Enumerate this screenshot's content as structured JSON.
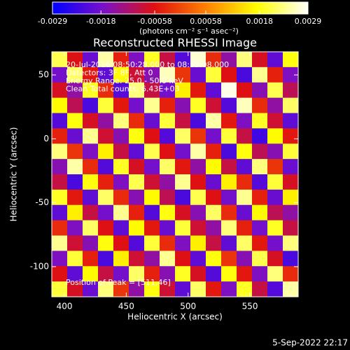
{
  "chart_data": {
    "type": "heatmap",
    "title": "Reconstructed RHESSI Image",
    "xlabel": "Heliocentric X (arcsec)",
    "ylabel": "Heliocentric Y (arcsec)",
    "colorbar_label": "(photons cm⁻² s⁻¹ asec⁻²)",
    "annotations": [
      "20-Jul-2016 08:50:28.000 to 08:55:08.000",
      "Detectors: 3F 8F, Att 0",
      "Energy Range: 25.0 - 50.0 keV",
      "Clean    Total counts: 6.43E+03"
    ],
    "peak_note": "Position of Peak = [511,46]",
    "timestamp": "5-Sep-2022 22:17",
    "xlim": [
      389.8,
      589
    ],
    "xticks": [
      400,
      450,
      500,
      550
    ],
    "ylim": [
      -123.6,
      68.1
    ],
    "yticks": [
      -100,
      -50,
      0,
      50
    ],
    "zlim": [
      -0.0029,
      0.0029
    ],
    "zticks": [
      -0.0029,
      -0.0018,
      -0.00058,
      0.00058,
      0.0018,
      0.0029
    ],
    "colormap": [
      "#0000ff",
      "#7a10c8",
      "#e01010",
      "#ff8000",
      "#ffff00",
      "#ffffff"
    ],
    "values": [
      [
        0.0021,
        -0.0006,
        -0.0019,
        0.0025,
        -0.0004,
        -0.0017,
        0.0019,
        -0.0009,
        -0.0021,
        0.0027,
        -0.0003,
        -0.0015,
        0.0023,
        -0.0007,
        -0.002,
        0.0018
      ],
      [
        -0.0018,
        0.0022,
        -0.0005,
        -0.002,
        0.0017,
        -0.0008,
        -0.0016,
        0.0026,
        -0.0002,
        -0.0019,
        0.002,
        -0.0006,
        -0.0022,
        0.0024,
        -0.0004,
        -0.0017
      ],
      [
        -0.0007,
        -0.0015,
        0.0019,
        -0.0003,
        -0.0021,
        0.0023,
        -0.0009,
        -0.0018,
        0.0016,
        -0.0005,
        -0.002,
        0.0028,
        -0.0006,
        -0.0016,
        0.0021,
        -0.001
      ],
      [
        0.0017,
        -0.001,
        -0.0022,
        0.002,
        -0.0005,
        -0.0018,
        0.0024,
        -0.0004,
        -0.0016,
        0.0019,
        -0.0008,
        -0.0021,
        0.0026,
        -0.0003,
        -0.0015,
        0.0022
      ],
      [
        -0.0021,
        0.0018,
        -0.0007,
        -0.0015,
        0.0023,
        -0.0003,
        -0.0019,
        0.002,
        -0.0009,
        -0.0022,
        0.0025,
        -0.0005,
        -0.0017,
        0.0019,
        -0.0008,
        -0.002
      ],
      [
        -0.0004,
        -0.0019,
        0.0024,
        -0.0008,
        -0.0016,
        0.0018,
        -0.0006,
        -0.0021,
        0.0022,
        -0.0002,
        -0.0018,
        0.002,
        -0.0009,
        -0.0023,
        0.0017,
        -0.0005
      ],
      [
        0.0023,
        -0.0002,
        -0.0017,
        0.0016,
        -0.0009,
        -0.002,
        0.0021,
        -0.0006,
        -0.0018,
        0.0025,
        -0.0004,
        -0.0022,
        0.0018,
        -0.001,
        -0.0016,
        0.002
      ],
      [
        -0.0016,
        0.0025,
        -0.0003,
        -0.0021,
        0.0019,
        -0.0007,
        -0.0018,
        0.0022,
        -0.0005,
        -0.0015,
        0.0017,
        -0.0009,
        -0.002,
        0.0023,
        -0.0002,
        -0.0019
      ],
      [
        -0.0009,
        -0.0022,
        0.0018,
        -0.0004,
        -0.0017,
        0.0021,
        -0.0008,
        -0.0015,
        0.0024,
        -0.0006,
        -0.0019,
        0.0016,
        -0.0003,
        -0.0021,
        0.002,
        -0.0007
      ],
      [
        0.0019,
        -0.0005,
        -0.002,
        0.0022,
        -0.0003,
        -0.0016,
        0.0017,
        -0.001,
        -0.0022,
        0.0021,
        -0.0006,
        -0.0018,
        0.0024,
        -0.0004,
        -0.0019,
        0.0016
      ],
      [
        -0.002,
        0.0016,
        -0.0009,
        -0.0018,
        0.0024,
        -0.0004,
        -0.0021,
        0.0018,
        -0.0007,
        -0.0016,
        0.0022,
        -0.0003,
        -0.0019,
        0.0017,
        -0.001,
        -0.0015
      ],
      [
        -0.0003,
        -0.0017,
        0.0022,
        -0.0006,
        -0.002,
        0.0017,
        -0.0005,
        -0.0019,
        0.002,
        -0.0008,
        -0.0015,
        0.0023,
        -0.0004,
        -0.0018,
        0.0019,
        -0.0009
      ],
      [
        0.0024,
        -0.0008,
        -0.0016,
        0.0018,
        -0.0006,
        -0.0021,
        0.002,
        -0.0003,
        -0.0017,
        0.0016,
        -0.0009,
        -0.002,
        0.0022,
        -0.0005,
        -0.0018,
        0.0023
      ],
      [
        -0.0017,
        0.002,
        -0.0004,
        -0.0022,
        0.0016,
        -0.0008,
        -0.0015,
        0.0024,
        -0.0006,
        -0.002,
        0.0018,
        -0.0002,
        -0.0016,
        0.0021,
        -0.0007,
        -0.0022
      ],
      [
        -0.0006,
        -0.002,
        0.0017,
        -0.0009,
        -0.0018,
        0.0022,
        -0.0004,
        -0.0016,
        0.0019,
        -0.0007,
        -0.0021,
        0.0018,
        -0.0005,
        -0.0017,
        0.0023,
        -0.0003
      ],
      [
        0.002,
        -0.0007,
        -0.0019,
        0.0023,
        -0.0002,
        -0.0015,
        0.0018,
        -0.0008,
        -0.002,
        0.0022,
        -0.0005,
        -0.0017,
        0.0019,
        -0.0009,
        -0.0021,
        0.0025
      ]
    ]
  }
}
